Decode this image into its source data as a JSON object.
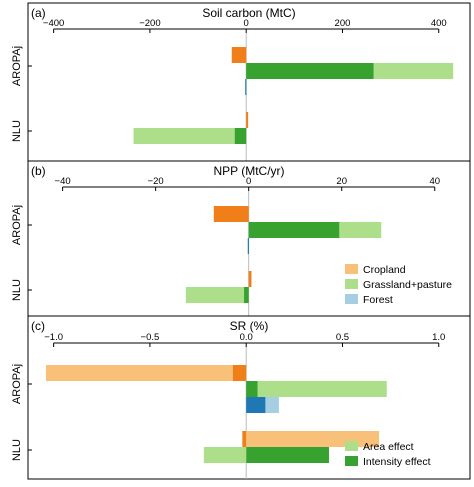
{
  "colors": {
    "cropland_intensity": "#f07f1a",
    "cropland_area": "#f9c07a",
    "grassland_intensity": "#37a22f",
    "grassland_area": "#addf8a",
    "forest_intensity": "#1f78b4",
    "forest_area": "#a6cee3"
  },
  "chart_data": [
    {
      "type": "bar",
      "orientation": "horizontal",
      "stacked": true,
      "panel_label": "(a)",
      "title": "Soil carbon (MtC)",
      "xlim": [
        -420,
        440
      ],
      "ticks": [
        -400,
        -200,
        0,
        200,
        400
      ],
      "tick_labels": [
        "−400",
        "−200",
        "0",
        "200",
        "400"
      ],
      "categories": [
        "AROPAj",
        "NLU"
      ],
      "bars": [
        {
          "category": "AROPAj",
          "land": "cropland",
          "component": "intensity",
          "row": 0,
          "start": 0,
          "value": -30
        },
        {
          "category": "AROPAj",
          "land": "grassland",
          "component": "intensity",
          "row": 1,
          "start": 0,
          "value": 265
        },
        {
          "category": "AROPAj",
          "land": "grassland",
          "component": "area",
          "row": 1,
          "start": 265,
          "value": 165
        },
        {
          "category": "AROPAj",
          "land": "forest",
          "component": "intensity",
          "row": 2,
          "start": 0,
          "value": -2
        },
        {
          "category": "NLU",
          "land": "cropland",
          "component": "intensity",
          "row": 0,
          "start": 0,
          "value": 4
        },
        {
          "category": "NLU",
          "land": "grassland",
          "component": "intensity",
          "row": 1,
          "start": 0,
          "value": -24
        },
        {
          "category": "NLU",
          "land": "grassland",
          "component": "area",
          "row": 1,
          "start": -24,
          "value": -210
        }
      ]
    },
    {
      "type": "bar",
      "orientation": "horizontal",
      "stacked": true,
      "panel_label": "(b)",
      "title": "NPP (MtC/yr)",
      "xlim": [
        -44,
        45
      ],
      "ticks": [
        -40,
        -20,
        0,
        20,
        40
      ],
      "tick_labels": [
        "−40",
        "−20",
        "0",
        "20",
        "40"
      ],
      "categories": [
        "AROPAj",
        "NLU"
      ],
      "bars": [
        {
          "category": "AROPAj",
          "land": "cropland",
          "component": "intensity",
          "row": 0,
          "start": 0,
          "value": -7.5
        },
        {
          "category": "AROPAj",
          "land": "grassland",
          "component": "intensity",
          "row": 1,
          "start": 0,
          "value": 19.5
        },
        {
          "category": "AROPAj",
          "land": "grassland",
          "component": "area",
          "row": 1,
          "start": 19.5,
          "value": 9
        },
        {
          "category": "AROPAj",
          "land": "forest",
          "component": "intensity",
          "row": 2,
          "start": 0,
          "value": -0.2
        },
        {
          "category": "NLU",
          "land": "cropland",
          "component": "intensity",
          "row": 0,
          "start": 0,
          "value": 0.6
        },
        {
          "category": "NLU",
          "land": "grassland",
          "component": "intensity",
          "row": 1,
          "start": 0,
          "value": -1
        },
        {
          "category": "NLU",
          "land": "grassland",
          "component": "area",
          "row": 1,
          "start": -1,
          "value": -12.5
        }
      ],
      "legend": {
        "placement": "bottom-right",
        "items": [
          {
            "label": "Cropland",
            "color": "#f9c07a"
          },
          {
            "label": "Grassland+pasture",
            "color": "#addf8a"
          },
          {
            "label": "Forest",
            "color": "#a6cee3"
          }
        ]
      }
    },
    {
      "type": "bar",
      "orientation": "horizontal",
      "stacked": true,
      "panel_label": "(c)",
      "title": "SR (%)",
      "xlim": [
        -1.05,
        1.1
      ],
      "ticks": [
        -1,
        -0.5,
        0,
        0.5,
        1
      ],
      "tick_labels": [
        "−1.0",
        "−0.5",
        "0.0",
        "0.5",
        "1.0"
      ],
      "categories": [
        "AROPAj",
        "NLU"
      ],
      "bars": [
        {
          "category": "AROPAj",
          "land": "cropland",
          "component": "intensity",
          "row": 0,
          "start": 0,
          "value": -0.07
        },
        {
          "category": "AROPAj",
          "land": "cropland",
          "component": "area",
          "row": 0,
          "start": -0.07,
          "value": -0.97
        },
        {
          "category": "AROPAj",
          "land": "grassland",
          "component": "intensity",
          "row": 1,
          "start": 0,
          "value": 0.06
        },
        {
          "category": "AROPAj",
          "land": "grassland",
          "component": "area",
          "row": 1,
          "start": 0.06,
          "value": 0.67
        },
        {
          "category": "AROPAj",
          "land": "forest",
          "component": "intensity",
          "row": 2,
          "start": 0,
          "value": 0.1
        },
        {
          "category": "AROPAj",
          "land": "forest",
          "component": "area",
          "row": 2,
          "start": 0.1,
          "value": 0.07
        },
        {
          "category": "NLU",
          "land": "cropland",
          "component": "intensity",
          "row": 0,
          "start": 0,
          "value": -0.02
        },
        {
          "category": "NLU",
          "land": "cropland",
          "component": "area",
          "row": 0,
          "start": 0,
          "value": 0.69
        },
        {
          "category": "NLU",
          "land": "grassland",
          "component": "intensity",
          "row": 1,
          "start": 0,
          "value": 0.43
        },
        {
          "category": "NLU",
          "land": "grassland",
          "component": "area",
          "row": 1,
          "start": 0,
          "value": -0.22
        }
      ],
      "legend": {
        "placement": "bottom-right",
        "items": [
          {
            "label": "Area effect",
            "color": "#addf8a"
          },
          {
            "label": "Intensity effect",
            "color": "#37a22f"
          }
        ]
      }
    }
  ]
}
